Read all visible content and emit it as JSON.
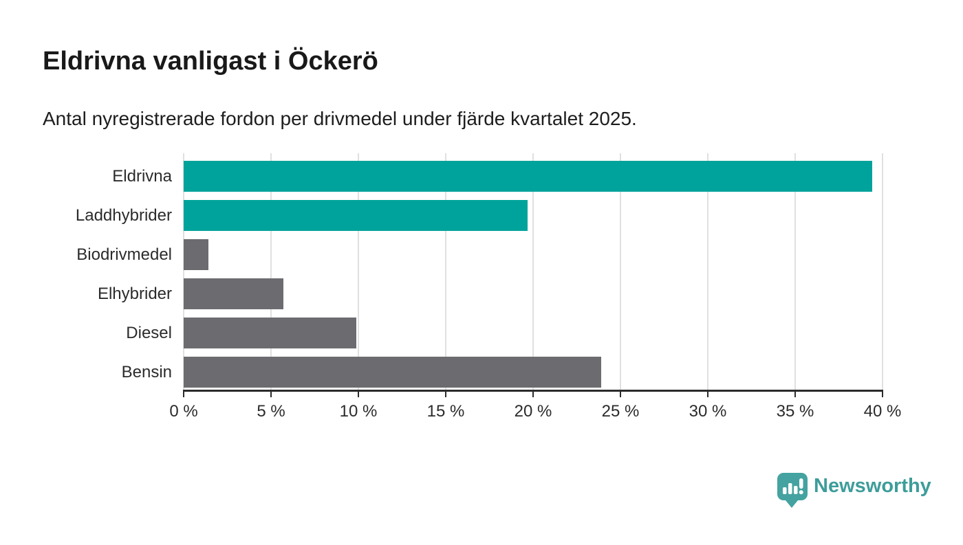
{
  "header": {
    "title": "Eldrivna vanligast i Öckerö",
    "subtitle": "Antal nyregistrerade fordon per drivmedel under fjärde kvartalet 2025."
  },
  "chart_data": {
    "type": "bar",
    "orientation": "horizontal",
    "title": "Eldrivna vanligast i Öckerö",
    "subtitle": "Antal nyregistrerade fordon per drivmedel under fjärde kvartalet 2025.",
    "categories": [
      "Eldrivna",
      "Laddhybrider",
      "Biodrivmedel",
      "Elhybrider",
      "Diesel",
      "Bensin"
    ],
    "values": [
      39.4,
      19.7,
      1.4,
      5.7,
      9.9,
      23.9
    ],
    "unit": "%",
    "bar_colors": [
      "#00a39b",
      "#00a39b",
      "#6c6b70",
      "#6c6b70",
      "#6c6b70",
      "#6c6b70"
    ],
    "highlight_color": "#00a39b",
    "default_color": "#6c6b70",
    "xlim": [
      0,
      40
    ],
    "ticks": [
      0,
      5,
      10,
      15,
      20,
      25,
      30,
      35,
      40
    ],
    "tick_suffix": " %",
    "grid": "vertical",
    "gridline_color": "#e0e0e0",
    "axis_color": "#2b2b2b",
    "legend": "none"
  },
  "branding": {
    "logo_text": "Newsworthy",
    "logo_mark_color": "#44a3a0",
    "logo_text_color": "#3d9d9a"
  }
}
